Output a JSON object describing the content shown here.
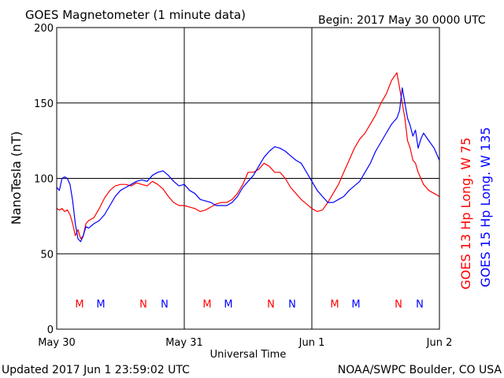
{
  "chart_data": {
    "type": "line",
    "title": "GOES Magnetometer (1 minute data)",
    "begin_label": "Begin:  2017 May 30 0000 UTC",
    "xlabel": "Universal Time",
    "ylabel": "NanoTesla (nT)",
    "ylim": [
      0,
      200
    ],
    "yticks": [
      0,
      50,
      100,
      150,
      200
    ],
    "xlim": [
      0,
      72
    ],
    "x_unit": "hours since 2017 May 30 0000 UTC",
    "xticks": [
      {
        "x": 0,
        "label": "May 30"
      },
      {
        "x": 24,
        "label": "May 31"
      },
      {
        "x": 48,
        "label": "Jun 1"
      },
      {
        "x": 72,
        "label": "Jun 2"
      }
    ],
    "grid": true,
    "colors": {
      "red": "#ff0000",
      "blue": "#0000ff",
      "frame": "#000000"
    },
    "series": [
      {
        "name": "GOES 13 Hp",
        "legend_label": "GOES 13 Hp  Long. W 75",
        "color": "#ff0000",
        "x": [
          0.0,
          0.5,
          1.0,
          1.5,
          2.0,
          2.5,
          3.0,
          3.5,
          4.0,
          4.5,
          5.0,
          5.5,
          6.0,
          7.0,
          8.0,
          9.0,
          10.0,
          11.0,
          12.0,
          13.0,
          14.0,
          15.0,
          16.0,
          17.0,
          18.0,
          19.0,
          20.0,
          21.0,
          22.0,
          23.0,
          24.0,
          25.0,
          26.0,
          27.0,
          28.0,
          29.0,
          30.0,
          31.0,
          32.0,
          33.0,
          34.0,
          35.0,
          36.0,
          37.0,
          38.0,
          39.0,
          40.0,
          41.0,
          42.0,
          43.0,
          44.0,
          45.0,
          46.0,
          47.0,
          48.0,
          49.0,
          50.0,
          51.0,
          52.0,
          53.0,
          54.0,
          55.0,
          56.0,
          57.0,
          58.0,
          59.0,
          60.0,
          61.0,
          62.0,
          63.0,
          64.0,
          64.5,
          65.0,
          65.5,
          66.0,
          66.5,
          67.0,
          67.5,
          68.0,
          68.5,
          69.0,
          70.0,
          71.0,
          72.0
        ],
        "y": [
          80,
          79,
          80,
          78,
          79,
          76,
          70,
          62,
          66,
          60,
          62,
          70,
          72,
          74,
          80,
          87,
          92,
          95,
          96,
          96,
          95,
          97,
          96,
          95,
          98,
          96,
          93,
          88,
          84,
          82,
          82,
          81,
          80,
          78,
          79,
          81,
          83,
          84,
          84,
          86,
          90,
          96,
          104,
          104,
          106,
          110,
          108,
          104,
          104,
          100,
          94,
          90,
          86,
          83,
          80,
          78,
          79,
          84,
          90,
          96,
          104,
          112,
          120,
          126,
          130,
          136,
          142,
          150,
          156,
          165,
          170,
          160,
          150,
          140,
          125,
          120,
          112,
          110,
          104,
          100,
          96,
          92,
          90,
          88
        ]
      },
      {
        "name": "GOES 15 Hp",
        "legend_label": "GOES 15 Hp  Long. W 135",
        "color": "#0000ff",
        "x": [
          0.0,
          0.5,
          1.0,
          1.5,
          2.0,
          2.5,
          3.0,
          3.5,
          4.0,
          4.5,
          5.0,
          5.5,
          6.0,
          7.0,
          8.0,
          9.0,
          10.0,
          11.0,
          12.0,
          13.0,
          14.0,
          15.0,
          16.0,
          17.0,
          18.0,
          19.0,
          20.0,
          21.0,
          22.0,
          23.0,
          24.0,
          25.0,
          26.0,
          27.0,
          28.0,
          29.0,
          30.0,
          31.0,
          32.0,
          33.0,
          34.0,
          35.0,
          36.0,
          37.0,
          38.0,
          39.0,
          40.0,
          41.0,
          42.0,
          43.0,
          44.0,
          45.0,
          46.0,
          47.0,
          48.0,
          49.0,
          50.0,
          51.0,
          52.0,
          53.0,
          54.0,
          55.0,
          56.0,
          57.0,
          58.0,
          59.0,
          60.0,
          61.0,
          62.0,
          63.0,
          64.0,
          64.5,
          65.0,
          65.5,
          66.0,
          66.5,
          67.0,
          67.5,
          68.0,
          68.5,
          69.0,
          70.0,
          71.0,
          72.0
        ],
        "y": [
          94,
          92,
          100,
          101,
          100,
          96,
          85,
          70,
          60,
          58,
          62,
          68,
          67,
          70,
          72,
          76,
          82,
          88,
          92,
          94,
          96,
          98,
          99,
          98,
          102,
          104,
          105,
          102,
          98,
          95,
          96,
          92,
          90,
          86,
          85,
          84,
          82,
          82,
          82,
          84,
          88,
          94,
          98,
          102,
          108,
          114,
          118,
          121,
          120,
          118,
          115,
          112,
          110,
          104,
          98,
          92,
          88,
          84,
          84,
          86,
          88,
          92,
          95,
          98,
          104,
          110,
          118,
          124,
          130,
          136,
          140,
          145,
          160,
          150,
          140,
          135,
          128,
          132,
          120,
          126,
          130,
          125,
          120,
          112
        ]
      }
    ],
    "marker_rows": [
      {
        "y": 17,
        "color": "#ff0000",
        "marks": [
          {
            "x": 4.3,
            "label": "M"
          },
          {
            "x": 16.3,
            "label": "N"
          },
          {
            "x": 28.3,
            "label": "M"
          },
          {
            "x": 40.3,
            "label": "N"
          },
          {
            "x": 52.3,
            "label": "M"
          },
          {
            "x": 64.3,
            "label": "N"
          }
        ]
      },
      {
        "y": 17,
        "color": "#0000ff",
        "marks": [
          {
            "x": 8.3,
            "label": "M"
          },
          {
            "x": 20.3,
            "label": "N"
          },
          {
            "x": 32.3,
            "label": "M"
          },
          {
            "x": 44.3,
            "label": "N"
          },
          {
            "x": 56.3,
            "label": "M"
          },
          {
            "x": 68.3,
            "label": "N"
          }
        ]
      }
    ],
    "footer_left": "Updated 2017 Jun  1 23:59:02 UTC",
    "footer_right": "NOAA/SWPC Boulder, CO USA"
  }
}
